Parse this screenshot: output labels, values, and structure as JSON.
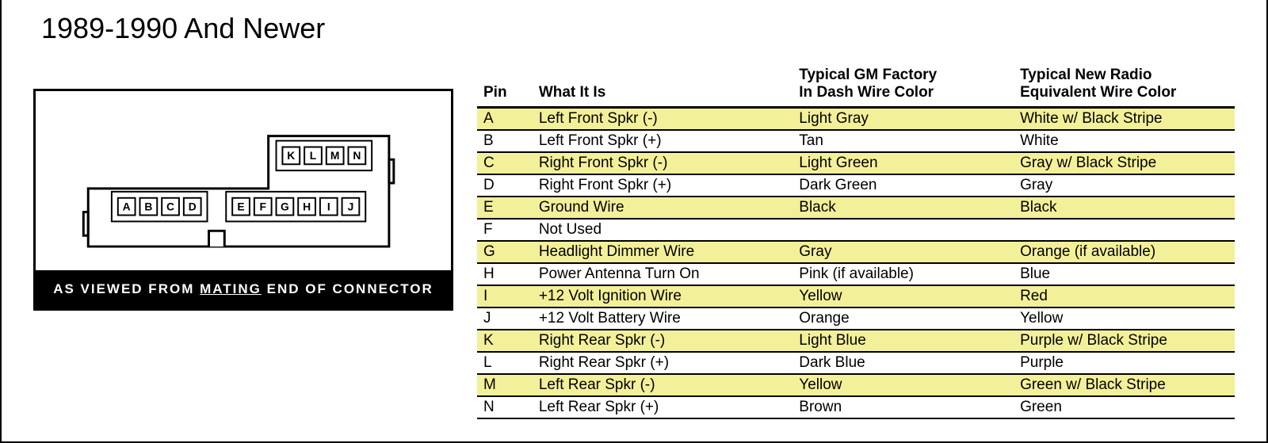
{
  "title": "1989-1990 And Newer",
  "connector": {
    "caption_prefix": "AS VIEWED FROM ",
    "caption_underlined": "MATING",
    "caption_suffix": " END OF CONNECTOR",
    "top_row_pins": [
      "K",
      "L",
      "M",
      "N"
    ],
    "bottom_left_pins": [
      "A",
      "B",
      "C",
      "D"
    ],
    "bottom_right_pins": [
      "E",
      "F",
      "G",
      "H",
      "I",
      "J"
    ],
    "outline_stroke": "#000000",
    "outline_width": 3,
    "pin_box_size": 22,
    "pin_box_gap": 6,
    "pin_font_size": 14
  },
  "table": {
    "headers": {
      "pin": "Pin",
      "what": "What It Is",
      "gm": "Typical GM Factory\nIn Dash Wire Color",
      "newradio": "Typical New Radio\nEquivalent Wire Color"
    },
    "stripe_color": "#f3f09a",
    "border_color": "#000000",
    "rows": [
      {
        "pin": "A",
        "what": "Left Front Spkr (-)",
        "gm": "Light Gray",
        "newradio": "White w/ Black Stripe",
        "stripe": true
      },
      {
        "pin": "B",
        "what": "Left Front Spkr (+)",
        "gm": "Tan",
        "newradio": "White",
        "stripe": false
      },
      {
        "pin": "C",
        "what": "Right Front Spkr (-)",
        "gm": "Light Green",
        "newradio": "Gray w/ Black Stripe",
        "stripe": true
      },
      {
        "pin": "D",
        "what": "Right Front Spkr (+)",
        "gm": "Dark Green",
        "newradio": "Gray",
        "stripe": false
      },
      {
        "pin": "E",
        "what": "Ground Wire",
        "gm": "Black",
        "newradio": "Black",
        "stripe": true
      },
      {
        "pin": "F",
        "what": "Not Used",
        "gm": "",
        "newradio": "",
        "stripe": false
      },
      {
        "pin": "G",
        "what": "Headlight Dimmer Wire",
        "gm": "Gray",
        "newradio": "Orange (if available)",
        "stripe": true
      },
      {
        "pin": "H",
        "what": "Power Antenna Turn On",
        "gm": "Pink (if available)",
        "newradio": "Blue",
        "stripe": false
      },
      {
        "pin": "I",
        "what": "+12 Volt Ignition Wire",
        "gm": "Yellow",
        "newradio": "Red",
        "stripe": true
      },
      {
        "pin": "J",
        "what": "+12 Volt Battery Wire",
        "gm": "Orange",
        "newradio": "Yellow",
        "stripe": false
      },
      {
        "pin": "K",
        "what": "Right Rear Spkr (-)",
        "gm": "Light Blue",
        "newradio": "Purple w/ Black Stripe",
        "stripe": true
      },
      {
        "pin": "L",
        "what": "Right Rear Spkr (+)",
        "gm": "Dark Blue",
        "newradio": "Purple",
        "stripe": false
      },
      {
        "pin": "M",
        "what": "Left Rear Spkr (-)",
        "gm": "Yellow",
        "newradio": "Green w/ Black Stripe",
        "stripe": true
      },
      {
        "pin": "N",
        "what": "Left Rear Spkr (+)",
        "gm": "Brown",
        "newradio": "Green",
        "stripe": false
      }
    ]
  }
}
